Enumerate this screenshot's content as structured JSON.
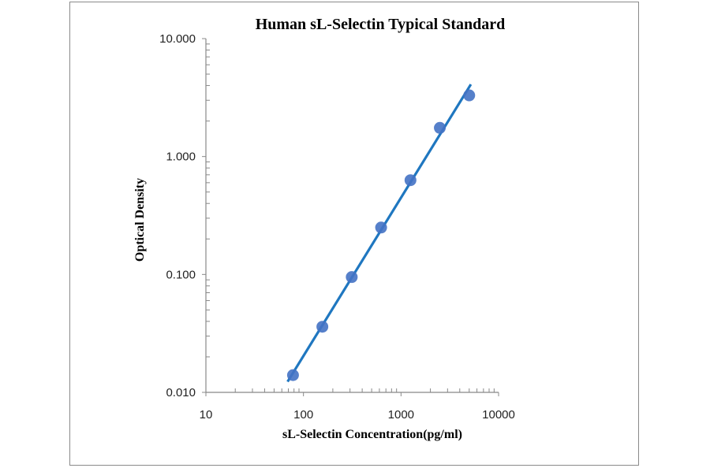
{
  "chart_data": {
    "type": "scatter",
    "title": "Human sL-Selectin Typical Standard",
    "xlabel": "sL-Selectin Concentration(pg/ml)",
    "ylabel": "Optical Density",
    "x_scale": "log",
    "y_scale": "log",
    "xlim": [
      10,
      10000
    ],
    "ylim": [
      0.01,
      10
    ],
    "x_ticks": [
      "10",
      "100",
      "1000",
      "10000"
    ],
    "y_ticks": [
      "0.010",
      "0.100",
      "1.000",
      "10.000"
    ],
    "grid": false,
    "legend": "none",
    "series": [
      {
        "x": [
          78.125,
          156.25,
          312.5,
          625,
          1250,
          2500,
          5000
        ],
        "y": [
          0.014,
          0.036,
          0.095,
          0.25,
          0.63,
          1.75,
          3.3
        ],
        "marker_color": "#4472c4",
        "trendline": "power",
        "trendline_color": "#1f77c0"
      }
    ]
  }
}
